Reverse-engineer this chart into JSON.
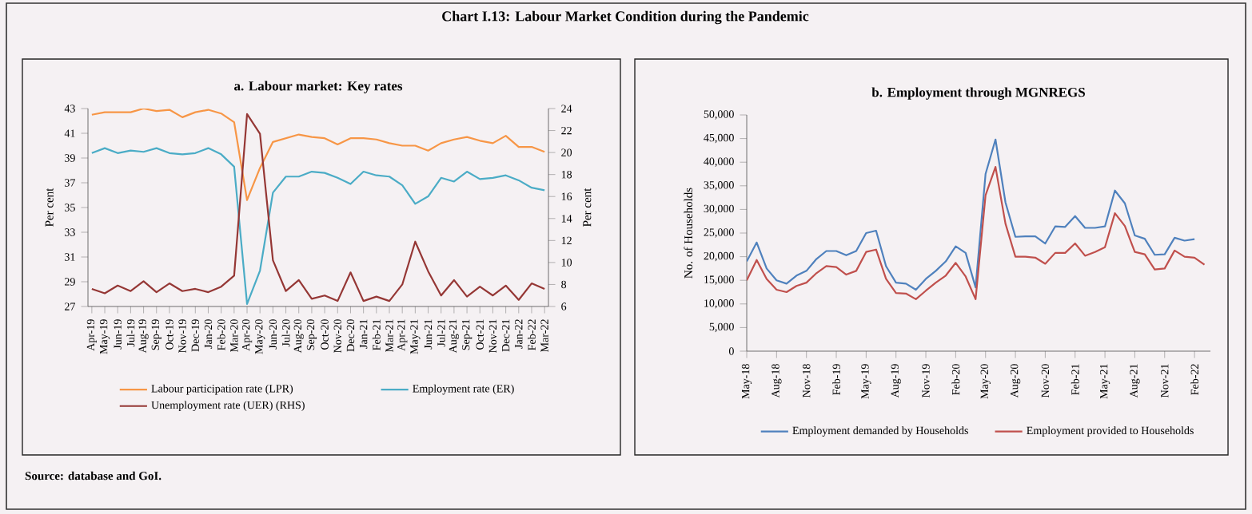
{
  "chart_data": [
    {
      "type": "line",
      "title": "Chart I.13: Labour Market Condition during the Pandemic",
      "subtitle": "a. Labour market: Key rates",
      "ylabel": "Per cent",
      "y2label": "Per cent",
      "categories": [
        "Apr-19",
        "May-19",
        "Jun-19",
        "Jul-19",
        "Aug-19",
        "Sep-19",
        "Oct-19",
        "Nov-19",
        "Dec-19",
        "Jan-20",
        "Feb-20",
        "Mar-20",
        "Apr-20",
        "May-20",
        "Jun-20",
        "Jul-20",
        "Aug-20",
        "Sep-20",
        "Oct-20",
        "Nov-20",
        "Dec-20",
        "Jan-21",
        "Feb-21",
        "Mar-21",
        "Apr-21",
        "May-21",
        "Jun-21",
        "Jul-21",
        "Aug-21",
        "Sep-21",
        "Oct-21",
        "Nov-21",
        "Dec-21",
        "Jan-22",
        "Feb-22",
        "Mar-22"
      ],
      "series": [
        {
          "name": "Labour participation rate (LPR)",
          "color": "#f79646",
          "values": [
            42.5,
            42.7,
            42.7,
            42.7,
            43.0,
            42.8,
            42.9,
            42.3,
            42.7,
            42.9,
            42.6,
            41.9,
            35.6,
            38.2,
            40.3,
            40.6,
            40.9,
            40.7,
            40.6,
            40.1,
            40.6,
            40.6,
            40.5,
            40.2,
            40.0,
            40.0,
            39.6,
            40.2,
            40.5,
            40.7,
            40.4,
            40.2,
            40.8,
            39.9,
            39.9,
            39.5
          ]
        },
        {
          "name": "Employment rate (ER)",
          "color": "#4bacc6",
          "values": [
            39.4,
            39.8,
            39.4,
            39.6,
            39.5,
            39.8,
            39.4,
            39.3,
            39.4,
            39.8,
            39.3,
            38.3,
            27.2,
            29.9,
            36.2,
            37.5,
            37.5,
            37.9,
            37.8,
            37.4,
            36.9,
            37.9,
            37.6,
            37.5,
            36.8,
            35.3,
            35.9,
            37.4,
            37.1,
            37.9,
            37.3,
            37.4,
            37.6,
            37.2,
            36.6,
            36.4
          ]
        },
        {
          "name": "Unemployment rate  (UER) (RHS)",
          "color": "#953735",
          "axis": "y2",
          "values": [
            7.6,
            7.2,
            7.9,
            7.4,
            8.3,
            7.3,
            8.1,
            7.4,
            7.6,
            7.3,
            7.8,
            8.8,
            23.5,
            21.7,
            10.2,
            7.4,
            8.4,
            6.7,
            7.0,
            6.5,
            9.1,
            6.5,
            6.9,
            6.5,
            8.0,
            11.9,
            9.2,
            7.0,
            8.4,
            6.9,
            7.8,
            7.0,
            7.9,
            6.6,
            8.1,
            7.6
          ]
        }
      ],
      "ylim": [
        27,
        43
      ],
      "yticks": [
        27,
        29,
        31,
        33,
        35,
        37,
        39,
        41,
        43
      ],
      "y2lim": [
        6,
        24
      ],
      "y2ticks": [
        6,
        8,
        10,
        12,
        14,
        16,
        18,
        20,
        22,
        24
      ],
      "legend": "bottom",
      "annotations": [
        "Source: database and GoI."
      ]
    },
    {
      "type": "line",
      "title": "b. Employment through MGNREGS",
      "ylabel": "No. of Households",
      "categories": [
        "May-18",
        null,
        null,
        "Aug-18",
        null,
        null,
        "Nov-18",
        null,
        null,
        "Feb-19",
        null,
        null,
        "May-19",
        null,
        null,
        "Aug-19",
        null,
        null,
        "Nov-19",
        null,
        null,
        "Feb-20",
        null,
        null,
        "May-20",
        null,
        null,
        "Aug-20",
        null,
        null,
        "Nov-20",
        null,
        null,
        "Feb-21",
        null,
        null,
        "May-21",
        null,
        null,
        "Aug-21",
        null,
        null,
        "Nov-21",
        null,
        null,
        "Feb-22",
        null
      ],
      "series": [
        {
          "name": "Employment demanded by Households",
          "color": "#4f81bd",
          "values": [
            19000,
            23000,
            17500,
            15000,
            14300,
            16000,
            17000,
            19500,
            21200,
            21200,
            20300,
            21200,
            25000,
            25500,
            18000,
            14500,
            14300,
            13000,
            15300,
            17000,
            19000,
            22200,
            20800,
            13500,
            37500,
            44800,
            31500,
            24200,
            24300,
            24300,
            22800,
            26400,
            26300,
            28600,
            26100,
            26100,
            26400,
            34000,
            31300,
            24500,
            23800,
            20400,
            20500,
            24000,
            23400,
            23700,
            null
          ]
        },
        {
          "name": "Employment provided to Households",
          "color": "#c0504d",
          "values": [
            15000,
            19300,
            15300,
            13000,
            12500,
            13800,
            14500,
            16500,
            18000,
            17800,
            16200,
            17000,
            21000,
            21500,
            15300,
            12300,
            12200,
            11000,
            12800,
            14500,
            16000,
            18700,
            15800,
            11000,
            33000,
            39000,
            27000,
            20000,
            20000,
            19800,
            18500,
            20800,
            20800,
            22800,
            20200,
            21000,
            22000,
            29200,
            26500,
            21000,
            20500,
            17300,
            17500,
            21300,
            20000,
            19800,
            18300
          ]
        }
      ],
      "ylim": [
        0,
        50000
      ],
      "yticks": [
        {
          "value": 0,
          "label": "0"
        },
        {
          "value": 5000,
          "label": "5,000"
        },
        {
          "value": 10000,
          "label": "10,000"
        },
        {
          "value": 15000,
          "label": "15,000"
        },
        {
          "value": 20000,
          "label": "20,000"
        },
        {
          "value": 25000,
          "label": "25,000"
        },
        {
          "value": 30000,
          "label": "30,000"
        },
        {
          "value": 35000,
          "label": "35,000"
        },
        {
          "value": 40000,
          "label": "40,000"
        },
        {
          "value": 45000,
          "label": "45,000"
        },
        {
          "value": 50000,
          "label": "50,000"
        }
      ],
      "legend": "bottom"
    }
  ]
}
